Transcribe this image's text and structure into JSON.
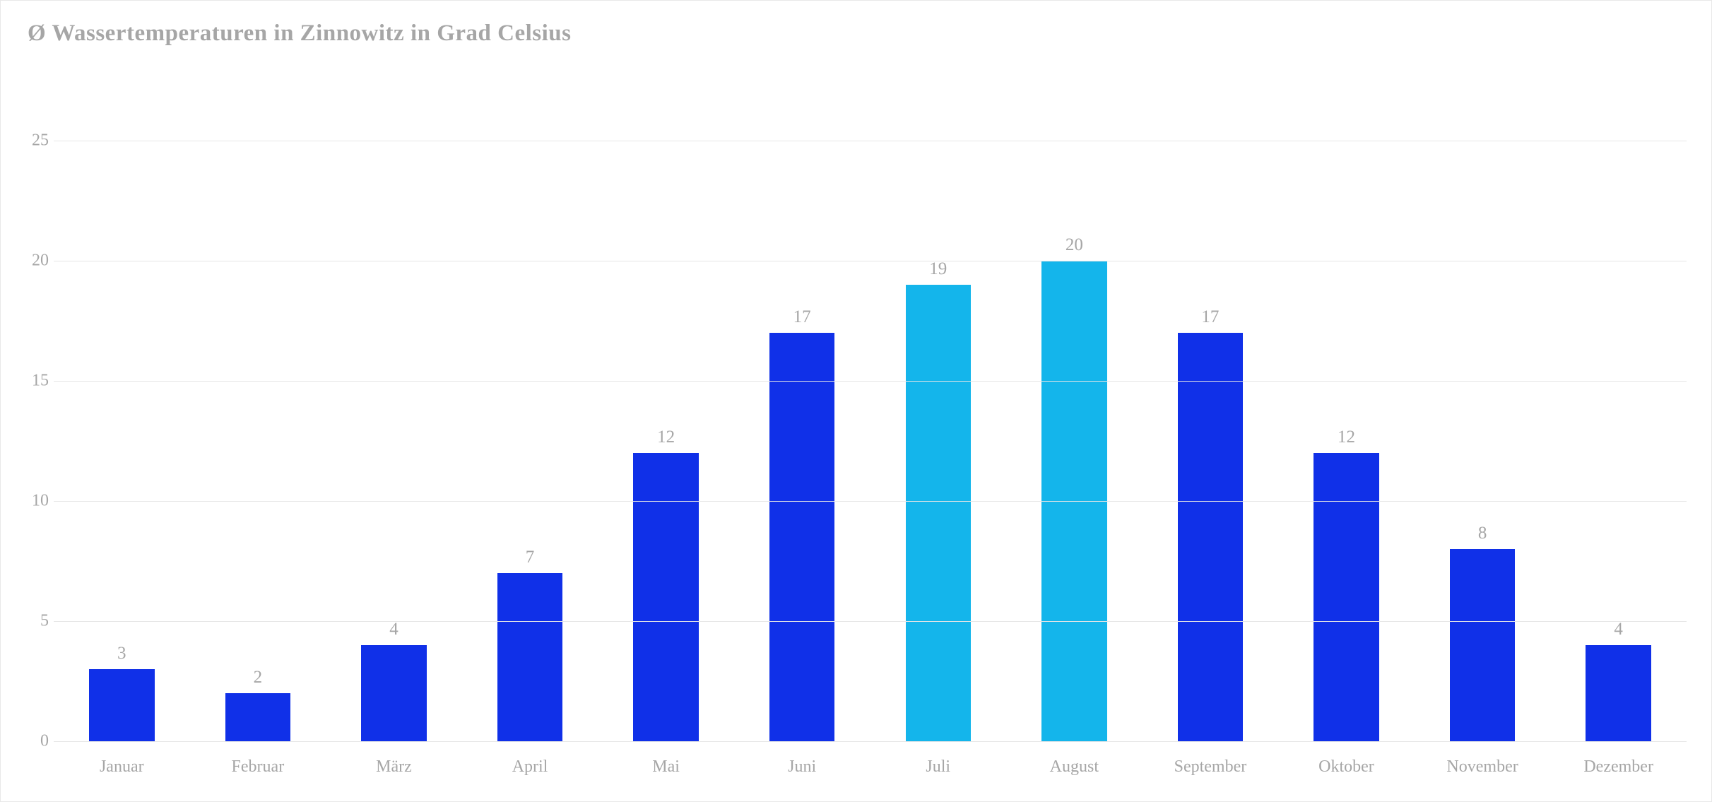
{
  "chart": {
    "type": "bar",
    "title": "Ø Wassertemperaturen in Zinnowitz in Grad Celsius",
    "title_color": "#a6a6a6",
    "title_fontsize": 33,
    "background_color": "#ffffff",
    "grid_color": "#e6e6e6",
    "label_color": "#a6a6a6",
    "axis_fontsize": 24,
    "value_label_fontsize": 25,
    "font_family": "Georgia, serif",
    "ylim": [
      0,
      27
    ],
    "yticks": [
      0,
      5,
      10,
      15,
      20,
      25
    ],
    "bar_width": 0.48,
    "categories": [
      "Januar",
      "Februar",
      "März",
      "April",
      "Mai",
      "Juni",
      "Juli",
      "August",
      "September",
      "Oktober",
      "November",
      "Dezember"
    ],
    "values": [
      3,
      2,
      4,
      7,
      12,
      17,
      19,
      20,
      17,
      12,
      8,
      4
    ],
    "bar_colors": [
      "#1030e8",
      "#1030e8",
      "#1030e8",
      "#1030e8",
      "#1030e8",
      "#1030e8",
      "#14b5eb",
      "#14b5eb",
      "#1030e8",
      "#1030e8",
      "#1030e8",
      "#1030e8"
    ]
  }
}
